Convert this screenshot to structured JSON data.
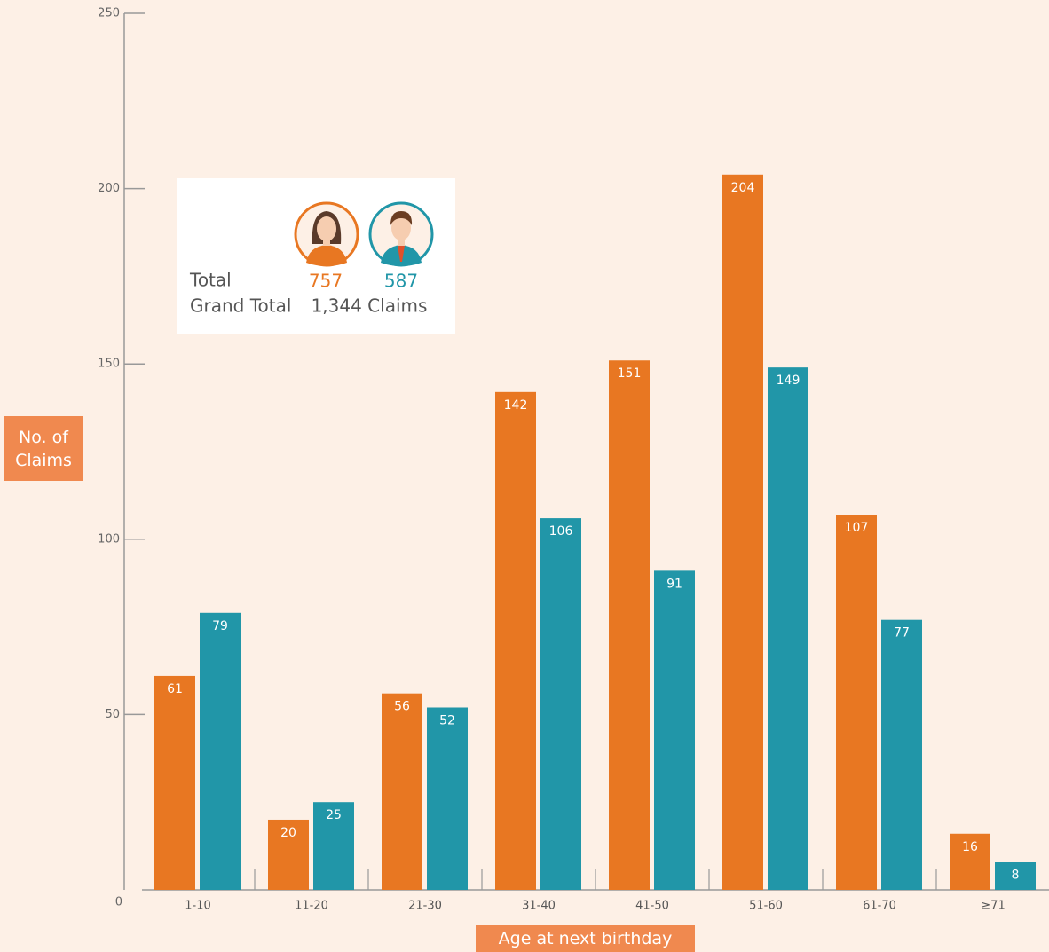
{
  "chart_data": {
    "type": "bar",
    "y_label": "No. of Claims",
    "x_label": "Age at next birthday",
    "categories": [
      "1-10",
      "11-20",
      "21-30",
      "31-40",
      "41-50",
      "51-60",
      "61-70",
      "≥71"
    ],
    "series": [
      {
        "color": "#e87722",
        "values": [
          61,
          20,
          56,
          142,
          151,
          204,
          107,
          16
        ]
      },
      {
        "color": "#2196a8",
        "values": [
          79,
          25,
          52,
          106,
          91,
          149,
          77,
          8
        ]
      }
    ],
    "ylim": [
      0,
      250
    ],
    "yticks": [
      0,
      50,
      100,
      150,
      200,
      250
    ],
    "summary": {
      "total_label": "Total",
      "totals": [
        757,
        587
      ],
      "grand_total_label": "Grand Total",
      "grand_total": "1,344 Claims"
    }
  }
}
